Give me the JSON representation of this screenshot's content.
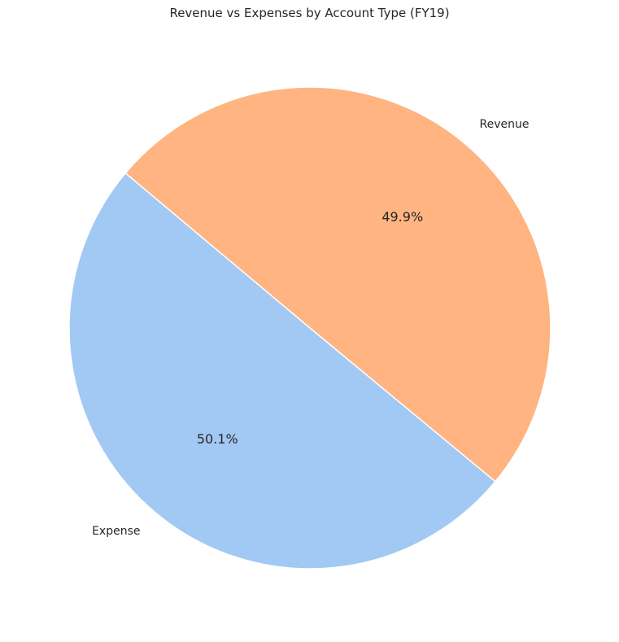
{
  "chart_data": {
    "type": "pie",
    "title": "Revenue vs Expenses by Account Type (FY19)",
    "categories": [
      "Expense",
      "Revenue"
    ],
    "values": [
      50.1,
      49.9
    ],
    "percent_labels": [
      "50.1%",
      "49.9%"
    ],
    "colors": [
      "#a1c9f4",
      "#ffb482"
    ],
    "edge_color": "#ffffff"
  }
}
